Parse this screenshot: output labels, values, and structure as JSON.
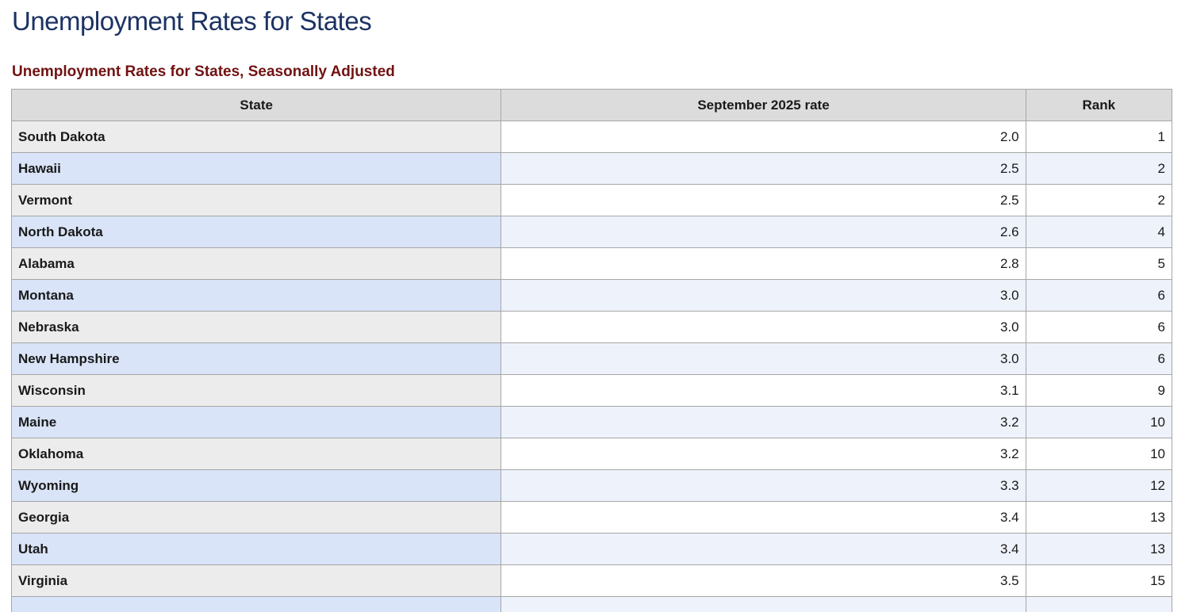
{
  "page": {
    "title": "Unemployment Rates for States"
  },
  "table": {
    "title": "Unemployment Rates for States, Seasonally Adjusted",
    "columns": [
      "State",
      "September 2025 rate",
      "Rank"
    ],
    "rows": [
      {
        "state": "South Dakota",
        "rate": "2.0",
        "rank": "1"
      },
      {
        "state": "Hawaii",
        "rate": "2.5",
        "rank": "2"
      },
      {
        "state": "Vermont",
        "rate": "2.5",
        "rank": "2"
      },
      {
        "state": "North Dakota",
        "rate": "2.6",
        "rank": "4"
      },
      {
        "state": "Alabama",
        "rate": "2.8",
        "rank": "5"
      },
      {
        "state": "Montana",
        "rate": "3.0",
        "rank": "6"
      },
      {
        "state": "Nebraska",
        "rate": "3.0",
        "rank": "6"
      },
      {
        "state": "New Hampshire",
        "rate": "3.0",
        "rank": "6"
      },
      {
        "state": "Wisconsin",
        "rate": "3.1",
        "rank": "9"
      },
      {
        "state": "Maine",
        "rate": "3.2",
        "rank": "10"
      },
      {
        "state": "Oklahoma",
        "rate": "3.2",
        "rank": "10"
      },
      {
        "state": "Wyoming",
        "rate": "3.3",
        "rank": "12"
      },
      {
        "state": "Georgia",
        "rate": "3.4",
        "rank": "13"
      },
      {
        "state": "Utah",
        "rate": "3.4",
        "rank": "13"
      },
      {
        "state": "Virginia",
        "rate": "3.5",
        "rank": "15"
      }
    ],
    "partial_next_row_visible": true
  },
  "colors": {
    "title": "#1c3263",
    "subtitle": "#701312",
    "header_bg": "#dcdcdc",
    "row_odd_header_bg": "#ececec",
    "row_odd_cell_bg": "#ffffff",
    "row_even_header_bg": "#d9e4f8",
    "row_even_cell_bg": "#eef2fb",
    "border": "#a6a6a6"
  }
}
